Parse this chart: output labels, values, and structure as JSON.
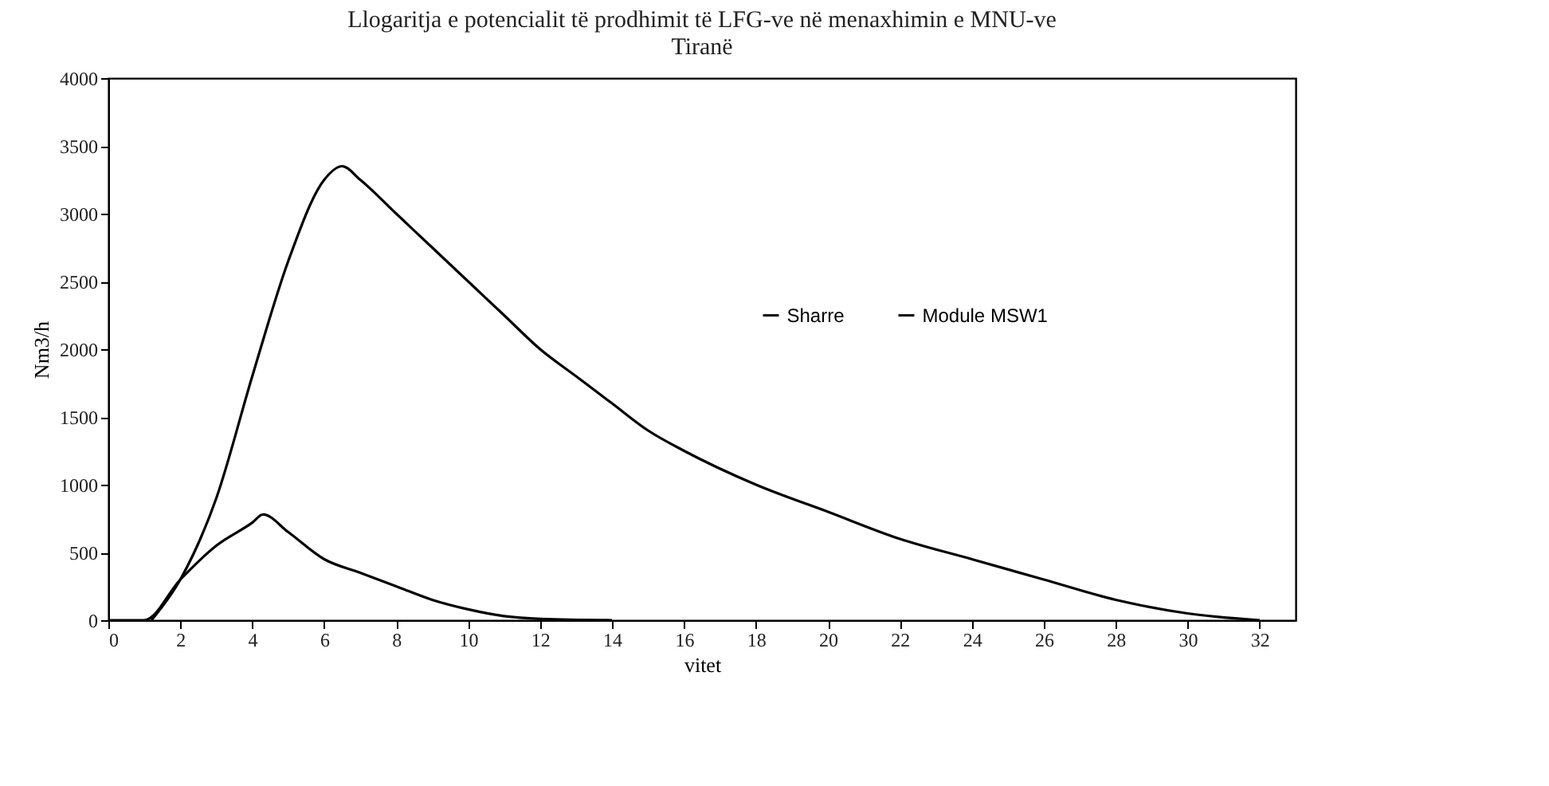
{
  "chart_data": {
    "type": "line",
    "title": [
      "Llogaritja e potencialit të prodhimit të LFG-ve  në menaxhimin e MNU-ve",
      "Tiranë"
    ],
    "xlabel": "vitet",
    "ylabel": "Nm3/h",
    "series": [
      {
        "name": "Sharre",
        "color": "#000000",
        "x": [
          1.2,
          2,
          3,
          4,
          5,
          6,
          6.5,
          7,
          8,
          9,
          10,
          11,
          12,
          13,
          14,
          15,
          16,
          18,
          20,
          22,
          24,
          26,
          28,
          30,
          32
        ],
        "values": [
          0,
          300,
          900,
          1800,
          2650,
          3250,
          3350,
          3250,
          3000,
          2750,
          2500,
          2250,
          2000,
          1800,
          1600,
          1400,
          1250,
          1000,
          800,
          600,
          450,
          300,
          150,
          50,
          0
        ]
      },
      {
        "name": "Module MSW1",
        "color": "#000000",
        "x": [
          0,
          1,
          2,
          3,
          4,
          4.3,
          5,
          6,
          7,
          8,
          9,
          10,
          11,
          12,
          14
        ],
        "values": [
          0,
          0,
          300,
          550,
          720,
          780,
          650,
          450,
          350,
          250,
          150,
          80,
          30,
          10,
          0
        ]
      }
    ],
    "xlim": [
      0,
      33
    ],
    "xticks": [
      0,
      2,
      4,
      6,
      8,
      10,
      12,
      14,
      16,
      18,
      20,
      22,
      24,
      26,
      28,
      30,
      32
    ],
    "ylim": [
      0,
      4000
    ],
    "yticks": [
      0,
      500,
      1000,
      1500,
      2000,
      2500,
      3000,
      3500,
      4000
    ],
    "legend": "right",
    "line_style": "solid",
    "marker": "none"
  }
}
